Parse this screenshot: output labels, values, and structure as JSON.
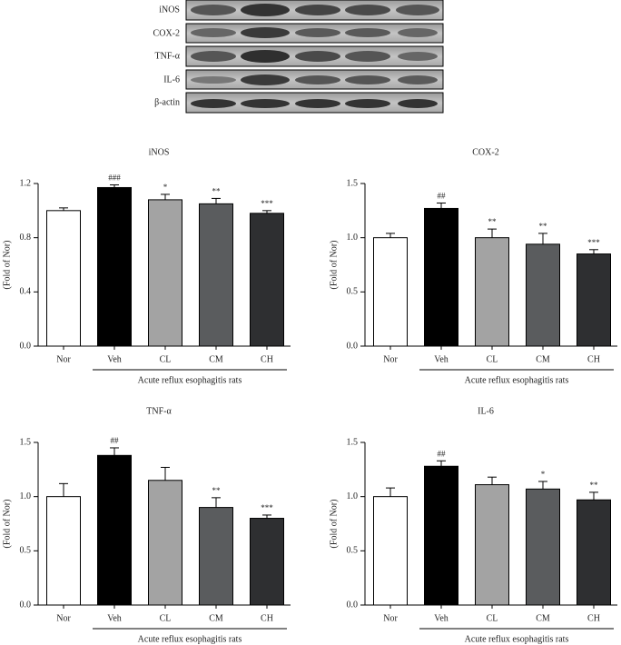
{
  "blot_labels": [
    "iNOS",
    "COX-2",
    "TNF-α",
    "IL-6",
    "β-actin"
  ],
  "chart_data": [
    {
      "type": "bar",
      "title": "iNOS",
      "y_label": "(Fold of Nor)",
      "x_group_label": "Acute reflux esophagitis rats",
      "categories": [
        "Nor",
        "Veh",
        "CL",
        "CM",
        "CH"
      ],
      "values": [
        1.0,
        1.17,
        1.08,
        1.05,
        0.98
      ],
      "errors": [
        0.02,
        0.02,
        0.04,
        0.04,
        0.02
      ],
      "annotations": [
        null,
        "###",
        "*",
        "**",
        "***"
      ],
      "colors": [
        "#ffffff",
        "#000000",
        "#a3a3a3",
        "#5a5c5e",
        "#2e2f31"
      ],
      "ylim": [
        0,
        1.2
      ],
      "yticks": [
        {
          "value": 0,
          "label": "0.0"
        },
        0.4,
        0.8,
        1.2
      ]
    },
    {
      "type": "bar",
      "title": "COX-2",
      "y_label": "(Fold of Nor)",
      "x_group_label": "Acute reflux esophagitis rats",
      "categories": [
        "Nor",
        "Veh",
        "CL",
        "CM",
        "CH"
      ],
      "values": [
        1.0,
        1.27,
        1.0,
        0.94,
        0.85
      ],
      "errors": [
        0.04,
        0.05,
        0.08,
        0.1,
        0.04
      ],
      "annotations": [
        null,
        "##",
        "**",
        "**",
        "***"
      ],
      "colors": [
        "#ffffff",
        "#000000",
        "#a3a3a3",
        "#5a5c5e",
        "#2e2f31"
      ],
      "ylim": [
        0,
        1.5
      ],
      "yticks": [
        {
          "value": 0,
          "label": "0.0"
        },
        0.5,
        {
          "value": 1,
          "label": "1.0"
        },
        1.5
      ]
    },
    {
      "type": "bar",
      "title": "TNF-α",
      "y_label": "(Fold of Nor)",
      "x_group_label": "Acute reflux esophagitis rats",
      "categories": [
        "Nor",
        "Veh",
        "CL",
        "CM",
        "CH"
      ],
      "values": [
        1.0,
        1.38,
        1.15,
        0.9,
        0.8
      ],
      "errors": [
        0.12,
        0.07,
        0.12,
        0.09,
        0.03
      ],
      "annotations": [
        null,
        "##",
        null,
        "**",
        "***"
      ],
      "colors": [
        "#ffffff",
        "#000000",
        "#a3a3a3",
        "#5a5c5e",
        "#2e2f31"
      ],
      "ylim": [
        0,
        1.5
      ],
      "yticks": [
        {
          "value": 0,
          "label": "0.0"
        },
        0.5,
        {
          "value": 1,
          "label": "1.0"
        },
        1.5
      ]
    },
    {
      "type": "bar",
      "title": "IL-6",
      "y_label": "(Fold of Nor)",
      "x_group_label": "Acute reflux esophagitis rats",
      "categories": [
        "Nor",
        "Veh",
        "CL",
        "CM",
        "CH"
      ],
      "values": [
        1.0,
        1.28,
        1.11,
        1.07,
        0.97
      ],
      "errors": [
        0.08,
        0.05,
        0.07,
        0.07,
        0.07
      ],
      "annotations": [
        null,
        "##",
        null,
        "*",
        "**"
      ],
      "colors": [
        "#ffffff",
        "#000000",
        "#a3a3a3",
        "#5a5c5e",
        "#2e2f31"
      ],
      "ylim": [
        0,
        1.5
      ],
      "yticks": [
        {
          "value": 0,
          "label": "0.0"
        },
        0.5,
        {
          "value": 1,
          "label": "1.0"
        },
        1.5
      ]
    }
  ]
}
